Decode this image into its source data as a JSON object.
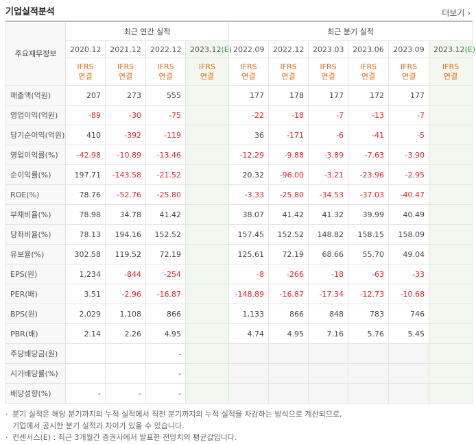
{
  "header": {
    "title": "기업실적분석",
    "more": "더보기"
  },
  "table": {
    "corner": "주요재무정보",
    "annual_group": "최근 연간 실적",
    "quarter_group": "최근 분기 실적",
    "columns": [
      {
        "period": "2020.12",
        "basis": "IFRS",
        "consolidation": "연결"
      },
      {
        "period": "2021.12",
        "basis": "IFRS",
        "consolidation": "연결"
      },
      {
        "period": "2022.12",
        "basis": "IFRS",
        "consolidation": "연결"
      },
      {
        "period": "2023.12",
        "estimate": "(E)",
        "basis": "IFRS",
        "consolidation": "연결"
      },
      {
        "period": "2022.09",
        "basis": "IFRS",
        "consolidation": "연결"
      },
      {
        "period": "2022.12",
        "basis": "IFRS",
        "consolidation": "연결"
      },
      {
        "period": "2023.03",
        "basis": "IFRS",
        "consolidation": "연결"
      },
      {
        "period": "2023.06",
        "basis": "IFRS",
        "consolidation": "연결"
      },
      {
        "period": "2023.09",
        "basis": "IFRS",
        "consolidation": "연결"
      },
      {
        "period": "2023.12",
        "estimate": "(E)",
        "basis": "IFRS",
        "consolidation": "연결"
      }
    ],
    "rows": [
      {
        "label": "매출액(억원)",
        "cells": [
          "207",
          "273",
          "555",
          null,
          "177",
          "178",
          "177",
          "172",
          "177",
          null
        ]
      },
      {
        "label": "영업이익(억원)",
        "cells": [
          "-89",
          "-30",
          "-75",
          null,
          "-22",
          "-18",
          "-7",
          "-13",
          "-7",
          null
        ]
      },
      {
        "label": "당기순이익(억원)",
        "cells": [
          "410",
          "-392",
          "-119",
          null,
          "36",
          "-171",
          "-6",
          "-41",
          "-5",
          null
        ]
      },
      {
        "label": "영업이익률(%)",
        "cells": [
          "-42.98",
          "-10.89",
          "-13.46",
          null,
          "-12.29",
          "-9.88",
          "-3.89",
          "-7.63",
          "-3.90",
          null
        ]
      },
      {
        "label": "순이익률(%)",
        "cells": [
          "197.71",
          "-143.58",
          "-21.52",
          null,
          "20.32",
          "-96.00",
          "-3.21",
          "-23.96",
          "-2.95",
          null
        ]
      },
      {
        "label": "ROE(%)",
        "cells": [
          "78.76",
          "-52.76",
          "-25.80",
          null,
          "-3.33",
          "-25.80",
          "-34.53",
          "-37.03",
          "-40.47",
          null
        ]
      },
      {
        "label": "부채비율(%)",
        "cells": [
          "78.98",
          "34.78",
          "41.42",
          null,
          "38.07",
          "41.42",
          "41.32",
          "39.99",
          "40.49",
          null
        ]
      },
      {
        "label": "당좌비율(%)",
        "cells": [
          "78.13",
          "194.16",
          "152.52",
          null,
          "157.45",
          "152.52",
          "148.82",
          "158.15",
          "158.09",
          null
        ]
      },
      {
        "label": "유보율(%)",
        "cells": [
          "302.58",
          "119.52",
          "72.19",
          null,
          "125.61",
          "72.19",
          "68.66",
          "55.70",
          "49.04",
          null
        ]
      },
      {
        "label": "EPS(원)",
        "cells": [
          "1,234",
          "-844",
          "-254",
          null,
          "-8",
          "-266",
          "-18",
          "-63",
          "-33",
          null
        ]
      },
      {
        "label": "PER(배)",
        "cells": [
          "3.51",
          "-2.96",
          "-16.87",
          null,
          "-148.89",
          "-16.87",
          "-17.34",
          "-12.73",
          "-10.68",
          null
        ]
      },
      {
        "label": "BPS(원)",
        "cells": [
          "2,029",
          "1,108",
          "866",
          null,
          "1,133",
          "866",
          "848",
          "783",
          "746",
          null
        ]
      },
      {
        "label": "PBR(배)",
        "cells": [
          "2.14",
          "2.26",
          "4.95",
          null,
          "4.74",
          "4.95",
          "7.16",
          "5.76",
          "5.45",
          null
        ]
      },
      {
        "label": "주당배당금(원)",
        "cells": [
          null,
          null,
          "-",
          null,
          null,
          null,
          null,
          null,
          null,
          null
        ]
      },
      {
        "label": "시가배당률(%)",
        "cells": [
          null,
          null,
          "-",
          null,
          null,
          null,
          null,
          null,
          null,
          null
        ]
      },
      {
        "label": "배당성향(%)",
        "cells": [
          "-",
          "-",
          "-",
          null,
          null,
          null,
          null,
          null,
          null,
          null
        ]
      }
    ]
  },
  "notes": [
    "분기 실적은 해당 분기까지의 누적 실적에서 직전 분기까지의 누적 실적을 차감하는 방식으로 계산되므로,",
    "기업에서 공시한 분기 실적과 차이가 있을 수 있습니다.",
    "컨센서스(E) : 최근 3개월간 증권사에서 발표한 전망치의 평균값입니다."
  ]
}
